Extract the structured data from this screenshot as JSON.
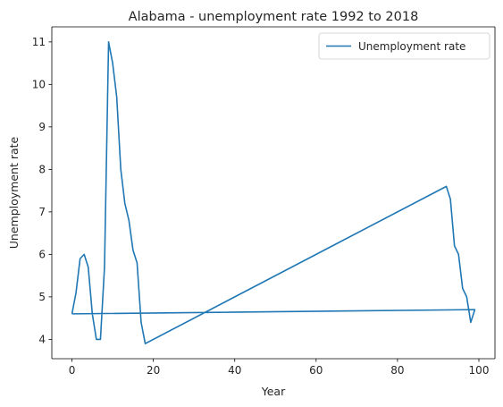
{
  "chart_data": {
    "type": "line",
    "title": "Alabama - unemployment rate 1992 to 2018",
    "xlabel": "Year",
    "ylabel": "Unemployment rate",
    "xlim": [
      -4.95,
      103.95
    ],
    "ylim": [
      3.545,
      11.355
    ],
    "xticks": [
      0,
      20,
      40,
      60,
      80,
      100
    ],
    "yticks": [
      4,
      5,
      6,
      7,
      8,
      9,
      10,
      11
    ],
    "grid": false,
    "legend": "top-right",
    "series": [
      {
        "name": "Unemployment rate",
        "color": "#1f77b4",
        "x": [
          0,
          1,
          2,
          3,
          4,
          5,
          6,
          7,
          8,
          9,
          10,
          11,
          12,
          13,
          14,
          15,
          16,
          17,
          18,
          92,
          93,
          94,
          95,
          96,
          97,
          98,
          99,
          0
        ],
        "y": [
          4.6,
          5.1,
          5.9,
          6.0,
          5.7,
          4.6,
          4.0,
          4.0,
          5.7,
          11.0,
          10.5,
          9.7,
          8.0,
          7.2,
          6.8,
          6.1,
          5.8,
          4.4,
          3.9,
          7.6,
          7.3,
          6.2,
          6.0,
          5.2,
          5.0,
          4.4,
          4.7,
          4.6
        ]
      }
    ]
  }
}
